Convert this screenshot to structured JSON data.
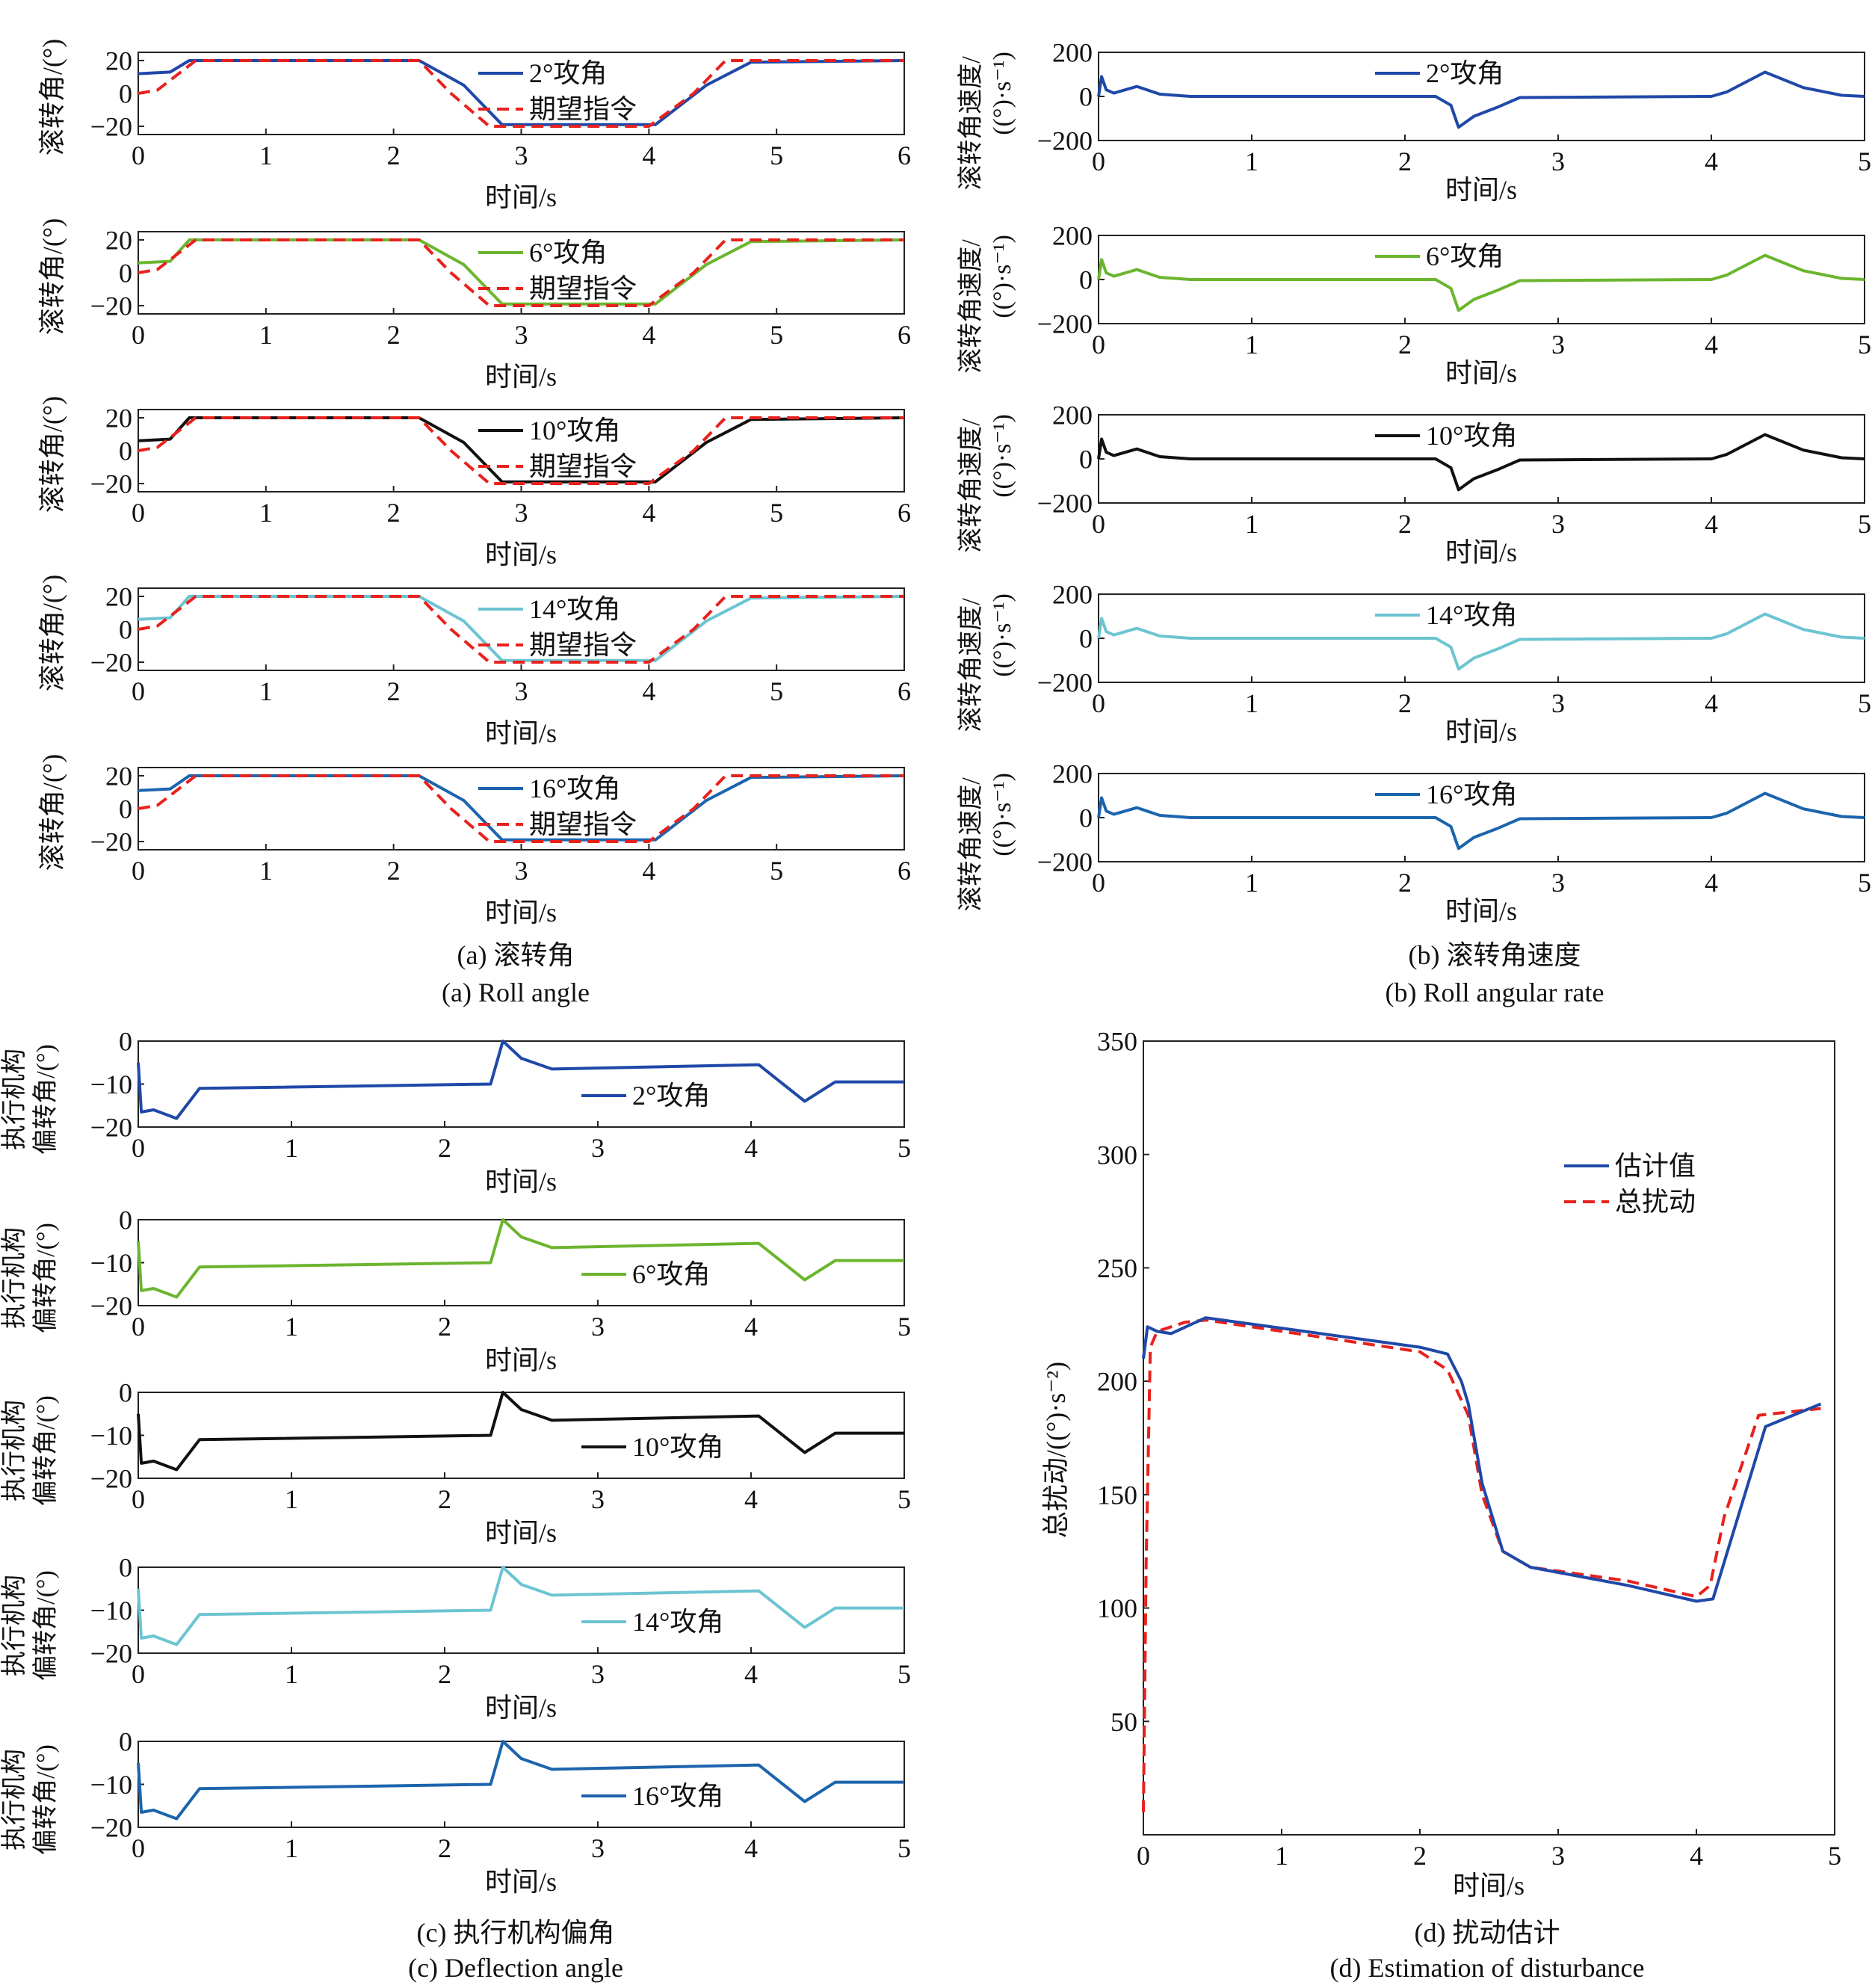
{
  "colors": {
    "blue2": "#1f48a8",
    "green6": "#6cb52f",
    "black10": "#111111",
    "cyan14": "#6cc4d2",
    "blue16": "#1c64ad",
    "ref": "#e8211d",
    "axis": "#222222"
  },
  "captions": {
    "a_cn": "(a) 滚转角",
    "a_en": "(a) Roll angle",
    "b_cn": "(b) 滚转角速度",
    "b_en": "(b) Roll angular rate",
    "c_cn": "(c) 执行机构偏角",
    "c_en": "(c) Deflection angle",
    "d_cn": "(d) 扰动估计",
    "d_en": "(d) Estimation of disturbance"
  },
  "axis_text": {
    "time": "时间/s",
    "roll_ylabel": "滚转角/(°)",
    "rate_ylabel_1": "滚转角速度/",
    "rate_ylabel_2": "((°)·s⁻¹)",
    "defl_ylabel_1": "执行机构",
    "defl_ylabel_2": "偏转角/(°)",
    "dist_ylabel": "总扰动/((°)·s⁻²)"
  },
  "legend": {
    "cmd": "期望指令",
    "est": "估计值",
    "total": "总扰动",
    "aoa": [
      "2°攻角",
      "6°攻角",
      "10°攻角",
      "14°攻角",
      "16°攻角"
    ]
  },
  "chart_data": [
    {
      "panel": "a",
      "type": "line",
      "title": "",
      "xlabel": "时间/s",
      "ylabel": "滚转角/(°)",
      "xlim": [
        0,
        6
      ],
      "ylim": [
        -25,
        25
      ],
      "xticks": [
        0,
        1,
        2,
        3,
        4,
        5,
        6
      ],
      "yticks": [
        -20,
        0,
        20
      ],
      "subplots": 5,
      "series_per_subplot": [
        {
          "name": "2°攻角",
          "x": [
            0,
            0.25,
            0.4,
            2.2,
            2.55,
            2.85,
            4.05,
            4.45,
            4.8,
            6
          ],
          "y": [
            12,
            13,
            20,
            20,
            5,
            -19,
            -19,
            5,
            19,
            20
          ]
        },
        {
          "name": "期望指令",
          "x": [
            0,
            0.15,
            0.45,
            2.2,
            2.45,
            2.75,
            4.0,
            4.35,
            4.6,
            6
          ],
          "y": [
            0,
            2,
            20,
            20,
            0,
            -20,
            -20,
            0,
            20,
            20
          ]
        }
      ],
      "initial_values_by_aoa": {
        "2°攻角": 12,
        "6°攻角": 6,
        "10°攻角": 6,
        "14°攻角": 6,
        "16°攻角": 11
      }
    },
    {
      "panel": "b",
      "type": "line",
      "title": "",
      "xlabel": "时间/s",
      "ylabel": "滚转角速度/((°)·s⁻¹)",
      "xlim": [
        0,
        5
      ],
      "ylim": [
        -200,
        200
      ],
      "xticks": [
        0,
        1,
        2,
        3,
        4,
        5
      ],
      "yticks": [
        -200,
        0,
        200
      ],
      "subplots": 5,
      "x": [
        0,
        0.02,
        0.05,
        0.1,
        0.25,
        0.4,
        0.6,
        2.2,
        2.3,
        2.35,
        2.45,
        2.6,
        2.75,
        4.0,
        4.1,
        4.35,
        4.6,
        4.85,
        5.0
      ],
      "y": [
        0,
        90,
        30,
        15,
        45,
        10,
        0,
        0,
        -40,
        -140,
        -90,
        -50,
        -5,
        0,
        20,
        110,
        40,
        5,
        0
      ]
    },
    {
      "panel": "c",
      "type": "line",
      "title": "",
      "xlabel": "时间/s",
      "ylabel": "执行机构偏转角/(°)",
      "xlim": [
        0,
        5
      ],
      "ylim": [
        -20,
        0
      ],
      "xticks": [
        0,
        1,
        2,
        3,
        4,
        5
      ],
      "yticks": [
        -20,
        -10,
        0
      ],
      "subplots": 5,
      "x": [
        0,
        0.02,
        0.1,
        0.25,
        0.4,
        2.3,
        2.38,
        2.5,
        2.7,
        4.05,
        4.35,
        4.55,
        5.0
      ],
      "y": [
        -5,
        -16.5,
        -16,
        -18,
        -11,
        -10,
        0,
        -4,
        -6.5,
        -5.5,
        -14,
        -9.5,
        -9.5
      ]
    },
    {
      "panel": "d",
      "type": "line",
      "title": "",
      "xlabel": "时间/s",
      "ylabel": "总扰动/((°)·s⁻²)",
      "xlim": [
        0,
        5
      ],
      "ylim": [
        0,
        350
      ],
      "xticks": [
        0,
        1,
        2,
        3,
        4,
        5
      ],
      "yticks": [
        50,
        100,
        150,
        200,
        250,
        300,
        350
      ],
      "legend_position": "top-right",
      "series": [
        {
          "name": "估计值",
          "x": [
            0,
            0.03,
            0.1,
            0.2,
            0.45,
            2.0,
            2.2,
            2.3,
            2.35,
            2.45,
            2.6,
            2.8,
            3.5,
            4.0,
            4.12,
            4.3,
            4.5,
            4.9
          ],
          "y": [
            210,
            224,
            222,
            221,
            228,
            215,
            212,
            200,
            190,
            155,
            125,
            118,
            110,
            103,
            104,
            140,
            180,
            190
          ]
        },
        {
          "name": "总扰动",
          "x": [
            0,
            0.02,
            0.05,
            0.1,
            0.3,
            0.45,
            2.0,
            2.2,
            2.35,
            2.45,
            2.6,
            2.8,
            3.5,
            4.0,
            4.1,
            4.2,
            4.45,
            4.9
          ],
          "y": [
            10,
            120,
            215,
            222,
            226,
            227,
            213,
            205,
            185,
            150,
            125,
            118,
            112,
            105,
            110,
            140,
            185,
            188
          ]
        }
      ]
    }
  ]
}
